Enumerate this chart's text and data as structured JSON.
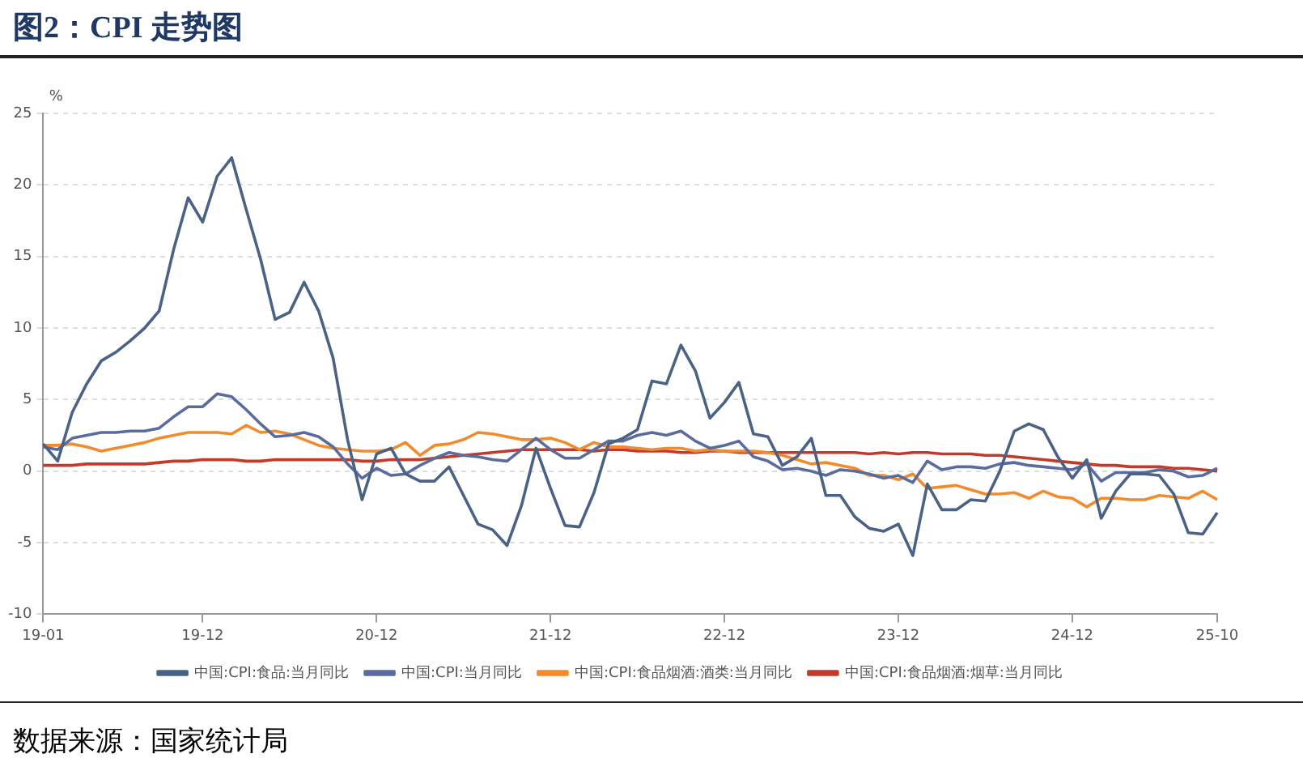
{
  "chart_data": {
    "type": "line",
    "title": "图2：CPI 走势图",
    "ylabel": "%",
    "categories": [
      "19-01",
      null,
      null,
      null,
      null,
      null,
      null,
      null,
      null,
      null,
      null,
      "19-12",
      null,
      null,
      null,
      null,
      null,
      null,
      null,
      null,
      null,
      null,
      null,
      "20-12",
      null,
      null,
      null,
      null,
      null,
      null,
      null,
      null,
      null,
      null,
      null,
      "21-12",
      null,
      null,
      null,
      null,
      null,
      null,
      null,
      null,
      null,
      null,
      null,
      "22-12",
      null,
      null,
      null,
      null,
      null,
      null,
      null,
      null,
      null,
      null,
      null,
      "23-12",
      null,
      null,
      null,
      null,
      null,
      null,
      null,
      null,
      null,
      null,
      null,
      "24-12",
      null,
      null,
      null,
      null,
      null,
      null,
      null,
      null,
      null,
      "25-10"
    ],
    "series": [
      {
        "name": "中国:CPI:食品:当月同比",
        "color": "#4a6285",
        "values": [
          1.9,
          0.7,
          4.1,
          6.1,
          7.7,
          8.3,
          9.1,
          10.0,
          11.2,
          15.5,
          19.1,
          17.4,
          20.6,
          21.9,
          18.3,
          14.8,
          10.6,
          11.1,
          13.2,
          11.2,
          7.9,
          2.2,
          -2.0,
          1.2,
          1.6,
          -0.2,
          -0.7,
          -0.7,
          0.3,
          -1.7,
          -3.7,
          -4.1,
          -5.2,
          -2.4,
          1.6,
          -1.2,
          -3.8,
          -3.9,
          -1.5,
          1.9,
          2.3,
          2.9,
          6.3,
          6.1,
          8.8,
          7.0,
          3.7,
          4.8,
          6.2,
          2.6,
          2.4,
          0.4,
          1.0,
          2.3,
          -1.7,
          -1.7,
          -3.2,
          -4.0,
          -4.2,
          -3.7,
          -5.9,
          -0.9,
          -2.7,
          -2.7,
          -2.0,
          -2.1,
          0.0,
          2.8,
          3.3,
          2.9,
          1.0,
          -0.5,
          0.8,
          -3.3,
          -1.4,
          -0.2,
          -0.2,
          -0.3,
          -1.6,
          -4.3,
          -4.4,
          -2.9
        ]
      },
      {
        "name": "中国:CPI:当月同比",
        "color": "#5a6b9e",
        "values": [
          1.7,
          1.5,
          2.3,
          2.5,
          2.7,
          2.7,
          2.8,
          2.8,
          3.0,
          3.8,
          4.5,
          4.5,
          5.4,
          5.2,
          4.3,
          3.3,
          2.4,
          2.5,
          2.7,
          2.4,
          1.7,
          0.5,
          -0.5,
          0.2,
          -0.3,
          -0.2,
          0.4,
          0.9,
          1.3,
          1.1,
          1.0,
          0.8,
          0.7,
          1.5,
          2.3,
          1.5,
          0.9,
          0.9,
          1.5,
          2.1,
          2.1,
          2.5,
          2.7,
          2.5,
          2.8,
          2.1,
          1.6,
          1.8,
          2.1,
          1.0,
          0.7,
          0.1,
          0.2,
          0.0,
          -0.3,
          0.1,
          0.0,
          -0.2,
          -0.5,
          -0.3,
          -0.8,
          0.7,
          0.1,
          0.3,
          0.3,
          0.2,
          0.5,
          0.6,
          0.4,
          0.3,
          0.2,
          0.1,
          0.5,
          -0.7,
          -0.1,
          -0.1,
          -0.1,
          0.1,
          0.0,
          -0.4,
          -0.3,
          0.2
        ]
      },
      {
        "name": "中国:CPI:食品烟酒:酒类:当月同比",
        "color": "#f28a2e",
        "values": [
          1.8,
          1.8,
          1.9,
          1.7,
          1.4,
          1.6,
          1.8,
          2.0,
          2.3,
          2.5,
          2.7,
          2.7,
          2.7,
          2.6,
          3.2,
          2.7,
          2.8,
          2.6,
          2.2,
          1.8,
          1.6,
          1.5,
          1.4,
          1.4,
          1.5,
          2.0,
          1.1,
          1.8,
          1.9,
          2.2,
          2.7,
          2.6,
          2.4,
          2.2,
          2.2,
          2.3,
          2.0,
          1.5,
          2.0,
          1.7,
          1.7,
          1.6,
          1.5,
          1.6,
          1.6,
          1.4,
          1.5,
          1.4,
          1.4,
          1.4,
          1.3,
          1.1,
          0.8,
          0.5,
          0.6,
          0.4,
          0.2,
          -0.3,
          -0.3,
          -0.6,
          -0.2,
          -1.2,
          -1.1,
          -1.0,
          -1.3,
          -1.6,
          -1.6,
          -1.5,
          -1.9,
          -1.4,
          -1.8,
          -1.9,
          -2.5,
          -1.9,
          -1.9,
          -2.0,
          -2.0,
          -1.7,
          -1.8,
          -1.9,
          -1.4,
          -2.0
        ]
      },
      {
        "name": "中国:CPI:食品烟酒:烟草:当月同比",
        "color": "#c23a2a",
        "values": [
          0.4,
          0.4,
          0.4,
          0.5,
          0.5,
          0.5,
          0.5,
          0.5,
          0.6,
          0.7,
          0.7,
          0.8,
          0.8,
          0.8,
          0.7,
          0.7,
          0.8,
          0.8,
          0.8,
          0.8,
          0.8,
          0.8,
          0.7,
          0.7,
          0.8,
          0.8,
          0.8,
          0.9,
          1.0,
          1.1,
          1.2,
          1.3,
          1.4,
          1.5,
          1.5,
          1.5,
          1.5,
          1.5,
          1.4,
          1.5,
          1.5,
          1.4,
          1.4,
          1.4,
          1.3,
          1.3,
          1.4,
          1.4,
          1.3,
          1.3,
          1.3,
          1.3,
          1.3,
          1.3,
          1.3,
          1.3,
          1.3,
          1.2,
          1.3,
          1.2,
          1.3,
          1.3,
          1.2,
          1.2,
          1.2,
          1.1,
          1.1,
          1.0,
          0.9,
          0.8,
          0.7,
          0.6,
          0.5,
          0.4,
          0.4,
          0.3,
          0.3,
          0.3,
          0.2,
          0.2,
          0.1,
          0.0
        ]
      }
    ],
    "ylim": [
      -10,
      25
    ],
    "yticks": [
      -10,
      -5,
      0,
      5,
      10,
      15,
      20,
      25
    ],
    "grid": "y",
    "legend": "bottom",
    "marker": "none",
    "line_style": "solid",
    "annotations": [
      "数据来源：国家统计局"
    ]
  }
}
